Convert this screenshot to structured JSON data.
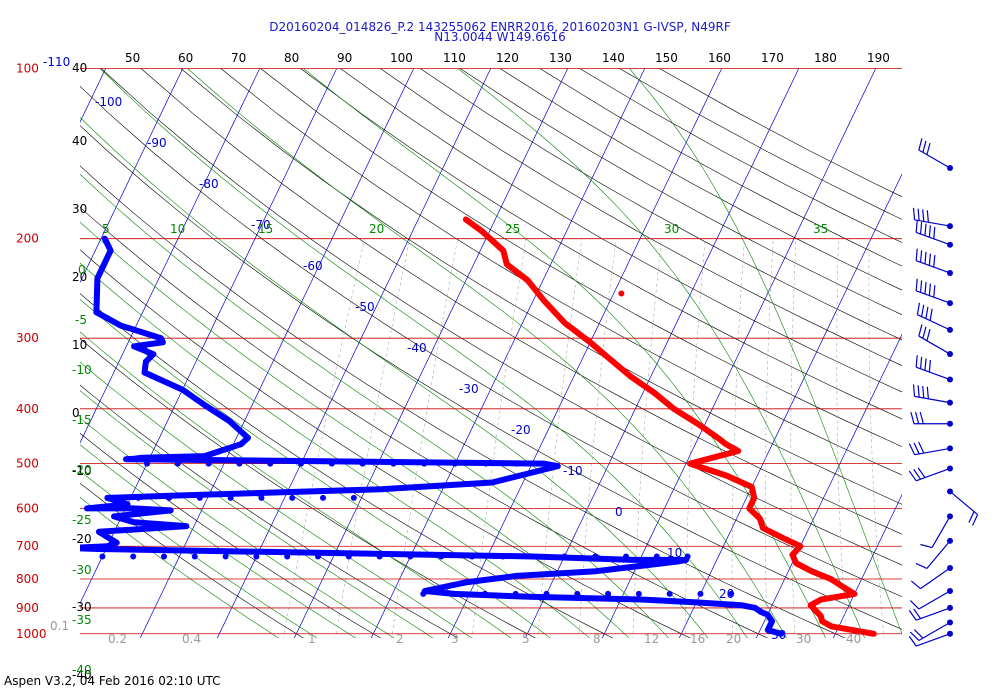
{
  "header": {
    "line1": "D20160204_014826_P.2 143255062 ENRR2016, 20160203N1 G-IVSP, N49RF",
    "line2": "N13.0044 W149.6616"
  },
  "footer": {
    "text": "Aspen V3.2, 04 Feb 2016  02:10 UTC"
  },
  "colors": {
    "isobar": "#cc0000",
    "isotherm": "#0000cc",
    "dry_adiabat": "#000000",
    "moist_adiabat": "#008800",
    "mixing_ratio": "#999999",
    "temperature": "#ff0000",
    "dewpoint": "#0000ff"
  },
  "chart_data": {
    "type": "skew-t",
    "pressure_levels_hPa": [
      "100",
      "200",
      "300",
      "400",
      "500",
      "600",
      "700",
      "800",
      "900",
      "1000"
    ],
    "top_pressure_label": "-110",
    "top_isotherm_labels": [
      "40",
      "50",
      "60",
      "70",
      "80",
      "90",
      "100",
      "110",
      "120",
      "130",
      "140",
      "150",
      "160",
      "170",
      "180",
      "190"
    ],
    "isotherm_labels": [
      "-100",
      "-90",
      "-80",
      "-70",
      "-60",
      "-50",
      "-40",
      "-30",
      "-20",
      "-10",
      "0",
      "10",
      "20",
      "30"
    ],
    "dry_adiabat_labels": [
      "40",
      "30",
      "20",
      "10",
      "0",
      "-10",
      "-20",
      "-30",
      "-40"
    ],
    "moist_adiabat_labels": [
      "5",
      "10",
      "15",
      "20",
      "25",
      "30",
      "35",
      "0",
      "-5",
      "-10",
      "-15",
      "-20",
      "-25",
      "-30",
      "-35",
      "-40"
    ],
    "mixing_ratio_labels": [
      "0.1",
      "0.2",
      "0.4",
      "1",
      "2",
      "3",
      "5",
      "8",
      "12",
      "16",
      "20",
      "30",
      "40"
    ],
    "temperature_profile": {
      "units": "C vs hPa",
      "points": [
        [
          -43.8,
          185
        ],
        [
          -41,
          194
        ],
        [
          -37,
          210
        ],
        [
          -35.7,
          222
        ],
        [
          -32,
          237
        ],
        [
          -28.5,
          258
        ],
        [
          -24.5,
          282
        ],
        [
          -20,
          305
        ],
        [
          -16.5,
          326
        ],
        [
          -12.7,
          350
        ],
        [
          -8.5,
          375
        ],
        [
          -5,
          400
        ],
        [
          -1,
          425
        ],
        [
          2.5,
          450
        ],
        [
          4,
          462
        ],
        [
          6,
          475
        ],
        [
          0.5,
          500
        ],
        [
          6,
          525
        ],
        [
          10,
          550
        ],
        [
          11,
          575
        ],
        [
          11,
          600
        ],
        [
          13,
          625
        ],
        [
          14,
          650
        ],
        [
          17,
          675
        ],
        [
          20,
          700
        ],
        [
          19.5,
          725
        ],
        [
          20.5,
          750
        ],
        [
          23,
          775
        ],
        [
          26,
          800
        ],
        [
          28,
          825
        ],
        [
          30,
          850
        ],
        [
          26,
          870
        ],
        [
          25,
          890
        ],
        [
          26,
          910
        ],
        [
          27,
          930
        ],
        [
          27.5,
          950
        ],
        [
          29,
          970
        ],
        [
          32,
          985
        ],
        [
          35,
          1000
        ]
      ]
    },
    "dewpoint_profile": {
      "units": "C vs hPa",
      "points": [
        [
          -89.5,
          200
        ],
        [
          -88,
          210
        ],
        [
          -88,
          235
        ],
        [
          -86,
          270
        ],
        [
          -82,
          285
        ],
        [
          -76,
          300
        ],
        [
          -75.5,
          305
        ],
        [
          -79,
          310
        ],
        [
          -76,
          320
        ],
        [
          -76.5,
          330
        ],
        [
          -76,
          345
        ],
        [
          -70,
          370
        ],
        [
          -66,
          395
        ],
        [
          -62,
          420
        ],
        [
          -58.5,
          450
        ],
        [
          -59,
          462
        ],
        [
          -63,
          485
        ],
        [
          -71,
          488
        ],
        [
          -72,
          490
        ],
        [
          -73,
          491
        ],
        [
          -18.5,
          500
        ],
        [
          -16.5,
          505
        ],
        [
          -24,
          540
        ],
        [
          -38,
          555
        ],
        [
          -65,
          570
        ],
        [
          -73,
          575
        ],
        [
          -70,
          590
        ],
        [
          -75,
          600
        ],
        [
          -69,
          600
        ],
        [
          -64,
          605
        ],
        [
          -71,
          620
        ],
        [
          -68,
          635
        ],
        [
          -61,
          645
        ],
        [
          -72,
          660
        ],
        [
          -69,
          690
        ],
        [
          -70,
          700
        ],
        [
          -75,
          705
        ],
        [
          -71,
          708
        ],
        [
          -14,
          730
        ],
        [
          -1,
          740
        ],
        [
          6,
          740
        ],
        [
          5,
          745
        ],
        [
          -5,
          775
        ],
        [
          -15,
          790
        ],
        [
          -21,
          810
        ],
        [
          -26,
          840
        ],
        [
          -22,
          850
        ],
        [
          -12,
          860
        ],
        [
          3,
          870
        ],
        [
          10,
          880
        ],
        [
          16,
          890
        ],
        [
          18,
          900
        ],
        [
          19,
          915
        ],
        [
          20,
          925
        ],
        [
          21,
          950
        ],
        [
          21,
          970
        ],
        [
          21,
          985
        ],
        [
          23,
          1000
        ]
      ],
      "dry_layer_levels": [
        {
          "p": 500,
          "t_from": -70,
          "t_to": -18.5
        },
        {
          "p": 575,
          "t_from": -73,
          "t_to": -40
        },
        {
          "p": 730,
          "t_from": -70,
          "t_to": 6
        },
        {
          "p": 850,
          "t_from": -26,
          "t_to": 16
        }
      ]
    },
    "wind_barbs": [
      {
        "p": 150,
        "speed": "30",
        "dir": "300"
      },
      {
        "p": 190,
        "speed": "40",
        "dir": "280"
      },
      {
        "p": 205,
        "speed": "50",
        "dir": "290"
      },
      {
        "p": 230,
        "speed": "50",
        "dir": "290"
      },
      {
        "p": 260,
        "speed": "45",
        "dir": "290"
      },
      {
        "p": 290,
        "speed": "35",
        "dir": "295"
      },
      {
        "p": 320,
        "speed": "30",
        "dir": "300"
      },
      {
        "p": 355,
        "speed": "35",
        "dir": "290"
      },
      {
        "p": 390,
        "speed": "35",
        "dir": "280"
      },
      {
        "p": 425,
        "speed": "30",
        "dir": "270"
      },
      {
        "p": 470,
        "speed": "25",
        "dir": "260"
      },
      {
        "p": 510,
        "speed": "25",
        "dir": "250"
      },
      {
        "p": 560,
        "speed": "15",
        "dir": "130"
      },
      {
        "p": 620,
        "speed": "10",
        "dir": "210"
      },
      {
        "p": 685,
        "speed": "10",
        "dir": "220"
      },
      {
        "p": 765,
        "speed": "10",
        "dir": "235"
      },
      {
        "p": 840,
        "speed": "10",
        "dir": "240"
      },
      {
        "p": 900,
        "speed": "15",
        "dir": "250"
      },
      {
        "p": 955,
        "speed": "15",
        "dir": "240"
      },
      {
        "p": 1000,
        "speed": "10",
        "dir": "250"
      }
    ],
    "isolated_points": [
      [
        -19,
        250
      ]
    ]
  }
}
